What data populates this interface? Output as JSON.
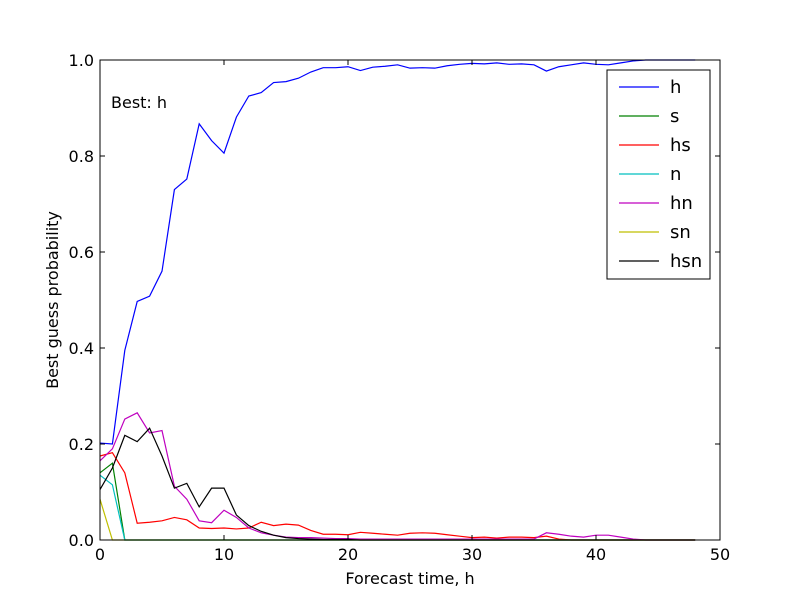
{
  "chart_data": {
    "type": "line",
    "xlabel": "Forecast time, h",
    "ylabel": "Best guess probability",
    "xlim": [
      0,
      50
    ],
    "ylim": [
      0,
      1.0
    ],
    "x_ticks": [
      "0",
      "10",
      "20",
      "30",
      "40",
      "50"
    ],
    "y_ticks": [
      "0.0",
      "0.2",
      "0.4",
      "0.6",
      "0.8",
      "1.0"
    ],
    "annotation": "Best: h",
    "legend_position": "top-right",
    "x": [
      0,
      1,
      2,
      3,
      4,
      5,
      6,
      7,
      8,
      9,
      10,
      11,
      12,
      13,
      14,
      15,
      16,
      17,
      18,
      19,
      20,
      21,
      22,
      23,
      24,
      25,
      26,
      27,
      28,
      29,
      30,
      31,
      32,
      33,
      34,
      35,
      36,
      37,
      38,
      39,
      40,
      41,
      42,
      43,
      44,
      45,
      46,
      47,
      48
    ],
    "series": [
      {
        "name": "h",
        "color": "#0000ff",
        "values": [
          0.202,
          0.2,
          0.395,
          0.497,
          0.508,
          0.56,
          0.73,
          0.752,
          0.867,
          0.832,
          0.806,
          0.881,
          0.925,
          0.932,
          0.953,
          0.955,
          0.962,
          0.975,
          0.984,
          0.984,
          0.986,
          0.978,
          0.985,
          0.987,
          0.99,
          0.983,
          0.984,
          0.983,
          0.988,
          0.991,
          0.993,
          0.992,
          0.994,
          0.991,
          0.992,
          0.99,
          0.977,
          0.986,
          0.99,
          0.994,
          0.991,
          0.99,
          0.994,
          0.998,
          1.0,
          1.0,
          1.0,
          1.0,
          1.0
        ]
      },
      {
        "name": "s",
        "color": "#008000",
        "values": [
          0.14,
          0.16,
          0.0,
          0.0,
          0.0,
          0.0,
          0.0,
          0.0,
          0.0,
          0.0,
          0.0,
          0.0,
          0.0,
          0.0,
          0.0,
          0.0,
          0.0,
          0.0,
          0.0,
          0.0,
          0.0,
          0.0,
          0.0,
          0.0,
          0.0,
          0.0,
          0.0,
          0.0,
          0.0,
          0.0,
          0.0,
          0.0,
          0.0,
          0.0,
          0.0,
          0.0,
          0.0,
          0.0,
          0.0,
          0.0,
          0.0,
          0.0,
          0.0,
          0.0,
          0.0,
          0.0,
          0.0,
          0.0,
          0.0
        ]
      },
      {
        "name": "hs",
        "color": "#ff0000",
        "values": [
          0.175,
          0.182,
          0.14,
          0.035,
          0.037,
          0.04,
          0.047,
          0.042,
          0.025,
          0.024,
          0.025,
          0.023,
          0.025,
          0.037,
          0.03,
          0.033,
          0.031,
          0.02,
          0.012,
          0.012,
          0.011,
          0.016,
          0.014,
          0.012,
          0.01,
          0.014,
          0.015,
          0.014,
          0.011,
          0.008,
          0.005,
          0.006,
          0.004,
          0.006,
          0.006,
          0.005,
          0.008,
          0.002,
          0.0,
          0.0,
          0.0,
          0.0,
          0.0,
          0.0,
          0.0,
          0.0,
          0.0,
          0.0,
          0.0
        ]
      },
      {
        "name": "n",
        "color": "#00bfbf",
        "values": [
          0.135,
          0.115,
          0.0,
          0.0,
          0.0,
          0.0,
          0.0,
          0.0,
          0.0,
          0.0,
          0.0,
          0.0,
          0.0,
          0.0,
          0.0,
          0.0,
          0.0,
          0.0,
          0.0,
          0.0,
          0.0,
          0.0,
          0.0,
          0.0,
          0.0,
          0.0,
          0.0,
          0.0,
          0.0,
          0.0,
          0.0,
          0.0,
          0.0,
          0.0,
          0.0,
          0.0,
          0.0,
          0.0,
          0.0,
          0.0,
          0.0,
          0.0,
          0.0,
          0.0,
          0.0,
          0.0,
          0.0,
          0.0,
          0.0
        ]
      },
      {
        "name": "hn",
        "color": "#bf00bf",
        "values": [
          0.165,
          0.19,
          0.252,
          0.265,
          0.223,
          0.228,
          0.112,
          0.085,
          0.04,
          0.036,
          0.062,
          0.047,
          0.025,
          0.015,
          0.01,
          0.006,
          0.005,
          0.005,
          0.004,
          0.003,
          0.003,
          0.002,
          0.002,
          0.002,
          0.002,
          0.002,
          0.002,
          0.002,
          0.002,
          0.002,
          0.002,
          0.002,
          0.002,
          0.002,
          0.002,
          0.002,
          0.015,
          0.012,
          0.008,
          0.006,
          0.01,
          0.01,
          0.006,
          0.002,
          0.0,
          0.0,
          0.0,
          0.0,
          0.0
        ]
      },
      {
        "name": "sn",
        "color": "#bfbf00",
        "values": [
          0.085,
          0.0,
          0.0,
          0.0,
          0.0,
          0.0,
          0.0,
          0.0,
          0.0,
          0.0,
          0.0,
          0.0,
          0.0,
          0.0,
          0.0,
          0.0,
          0.0,
          0.0,
          0.0,
          0.0,
          0.0,
          0.0,
          0.0,
          0.0,
          0.0,
          0.0,
          0.0,
          0.0,
          0.0,
          0.0,
          0.0,
          0.0,
          0.0,
          0.0,
          0.0,
          0.0,
          0.0,
          0.0,
          0.0,
          0.0,
          0.0,
          0.0,
          0.0,
          0.0,
          0.0,
          0.0,
          0.0,
          0.0,
          0.0
        ]
      },
      {
        "name": "hsn",
        "color": "#000000",
        "values": [
          0.105,
          0.15,
          0.218,
          0.205,
          0.233,
          0.175,
          0.108,
          0.118,
          0.069,
          0.108,
          0.108,
          0.052,
          0.03,
          0.018,
          0.01,
          0.005,
          0.003,
          0.002,
          0.001,
          0.001,
          0.001,
          0.0,
          0.0,
          0.0,
          0.0,
          0.0,
          0.0,
          0.0,
          0.0,
          0.0,
          0.0,
          0.0,
          0.0,
          0.0,
          0.0,
          0.0,
          0.0,
          0.0,
          0.0,
          0.0,
          0.0,
          0.0,
          0.0,
          0.0,
          0.0,
          0.0,
          0.0,
          0.0,
          0.0
        ]
      }
    ]
  }
}
